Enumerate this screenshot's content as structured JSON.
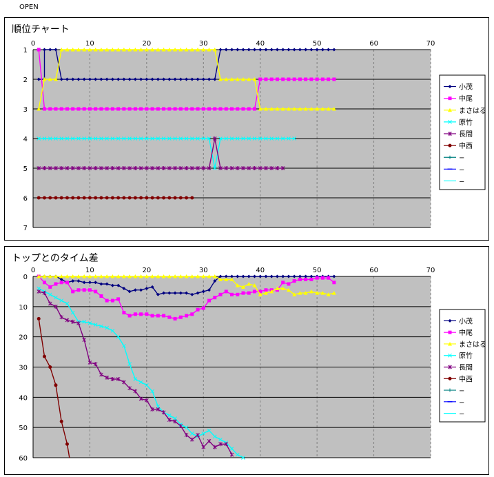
{
  "header": {
    "label": "OPEN"
  },
  "legend_items": [
    {
      "name": "小茂",
      "color": "#000080",
      "marker": "diamond"
    },
    {
      "name": "中尾",
      "color": "#ff00ff",
      "marker": "square"
    },
    {
      "name": "まさはる",
      "color": "#ffff00",
      "marker": "triangle"
    },
    {
      "name": "原竹",
      "color": "#00ffff",
      "marker": "x"
    },
    {
      "name": "長間",
      "color": "#800080",
      "marker": "star"
    },
    {
      "name": "中西",
      "color": "#800000",
      "marker": "circle"
    },
    {
      "name": "−",
      "color": "#008080",
      "marker": "plus"
    },
    {
      "name": "−",
      "color": "#0000ff",
      "marker": "dash"
    },
    {
      "name": "−",
      "color": "#00ffff",
      "marker": "none"
    }
  ],
  "chart_data": [
    {
      "type": "line",
      "title": "順位チャート",
      "xlim": [
        0,
        70
      ],
      "ylim": [
        1,
        7
      ],
      "y_reversed": true,
      "x_ticks": [
        0,
        10,
        20,
        30,
        40,
        50,
        60,
        70
      ],
      "y_ticks": [
        1,
        2,
        3,
        4,
        5,
        6,
        7
      ],
      "plot_background": "#c0c0c0",
      "grid": "horizontal solid, vertical dashed",
      "legend_position": "right",
      "segments": [
        {
          "series": 0,
          "from": 1,
          "to": 2,
          "value": 2
        },
        {
          "series": 0,
          "from": 2,
          "to": 4,
          "value": 1
        },
        {
          "series": 0,
          "from": 5,
          "to": 32,
          "value": 2
        },
        {
          "series": 0,
          "from": 33,
          "to": 53,
          "value": 1
        },
        {
          "series": 1,
          "from": 1,
          "to": 1,
          "value": 1
        },
        {
          "series": 1,
          "from": 2,
          "to": 39,
          "value": 3
        },
        {
          "series": 1,
          "from": 40,
          "to": 53,
          "value": 2
        },
        {
          "series": 2,
          "from": 1,
          "to": 1,
          "value": 3
        },
        {
          "series": 2,
          "from": 2,
          "to": 4,
          "value": 2
        },
        {
          "series": 2,
          "from": 5,
          "to": 32,
          "value": 1
        },
        {
          "series": 2,
          "from": 33,
          "to": 39,
          "value": 2
        },
        {
          "series": 2,
          "from": 40,
          "to": 53,
          "value": 3
        },
        {
          "series": 3,
          "from": 1,
          "to": 31,
          "value": 4
        },
        {
          "series": 3,
          "from": 32,
          "to": 32,
          "value": 5
        },
        {
          "series": 3,
          "from": 33,
          "to": 46,
          "value": 4
        },
        {
          "series": 4,
          "from": 1,
          "to": 31,
          "value": 5
        },
        {
          "series": 4,
          "from": 32,
          "to": 32,
          "value": 4
        },
        {
          "series": 4,
          "from": 33,
          "to": 44,
          "value": 5
        },
        {
          "series": 5,
          "from": 1,
          "to": 28,
          "value": 6
        }
      ]
    },
    {
      "type": "line",
      "title": "トップとのタイム差",
      "xlim": [
        0,
        70
      ],
      "ylim": [
        0,
        60
      ],
      "y_reversed": true,
      "x_ticks": [
        0,
        10,
        20,
        30,
        40,
        50,
        60,
        70
      ],
      "y_ticks": [
        0,
        10,
        20,
        30,
        40,
        50,
        60
      ],
      "plot_background": "#c0c0c0",
      "grid": "horizontal solid, vertical dashed",
      "legend_position": "right",
      "series": [
        {
          "index": 0,
          "points": [
            [
              1,
              0
            ],
            [
              2,
              0
            ],
            [
              3,
              0
            ],
            [
              4,
              0
            ],
            [
              5,
              1
            ],
            [
              6,
              2
            ],
            [
              7,
              1.5
            ],
            [
              8,
              1.5
            ],
            [
              9,
              2
            ],
            [
              10,
              2
            ],
            [
              11,
              2
            ],
            [
              12,
              2.5
            ],
            [
              13,
              2.5
            ],
            [
              14,
              3
            ],
            [
              15,
              3
            ],
            [
              16,
              4
            ],
            [
              17,
              5
            ],
            [
              18,
              4.5
            ],
            [
              19,
              4.5
            ],
            [
              20,
              4
            ],
            [
              21,
              3.5
            ],
            [
              22,
              6
            ],
            [
              23,
              5.5
            ],
            [
              24,
              5.5
            ],
            [
              25,
              5.5
            ],
            [
              26,
              5.5
            ],
            [
              27,
              5.5
            ],
            [
              28,
              6
            ],
            [
              29,
              5.5
            ],
            [
              30,
              5
            ],
            [
              31,
              4.5
            ],
            [
              32,
              1.5
            ],
            [
              33,
              0
            ],
            [
              34,
              0
            ],
            [
              35,
              0
            ],
            [
              36,
              0
            ],
            [
              37,
              0
            ],
            [
              38,
              0
            ],
            [
              39,
              0
            ],
            [
              40,
              0
            ],
            [
              41,
              0
            ],
            [
              42,
              0
            ],
            [
              43,
              0
            ],
            [
              44,
              0
            ],
            [
              45,
              0
            ],
            [
              46,
              0
            ],
            [
              47,
              0
            ],
            [
              48,
              0
            ],
            [
              49,
              0
            ],
            [
              50,
              0
            ],
            [
              51,
              0
            ],
            [
              52,
              0
            ],
            [
              53,
              0
            ]
          ]
        },
        {
          "index": 1,
          "points": [
            [
              1,
              0
            ],
            [
              2,
              2
            ],
            [
              3,
              3.5
            ],
            [
              4,
              2.5
            ],
            [
              5,
              2
            ],
            [
              6,
              2
            ],
            [
              7,
              5
            ],
            [
              8,
              4.5
            ],
            [
              9,
              4.5
            ],
            [
              10,
              4.5
            ],
            [
              11,
              5
            ],
            [
              12,
              6.5
            ],
            [
              13,
              8
            ],
            [
              14,
              8
            ],
            [
              15,
              7.5
            ],
            [
              16,
              12
            ],
            [
              17,
              13
            ],
            [
              18,
              12.5
            ],
            [
              19,
              12.5
            ],
            [
              20,
              12.5
            ],
            [
              21,
              13
            ],
            [
              22,
              13
            ],
            [
              23,
              13
            ],
            [
              24,
              13.5
            ],
            [
              25,
              14
            ],
            [
              26,
              13.5
            ],
            [
              27,
              13
            ],
            [
              28,
              12.5
            ],
            [
              29,
              11
            ],
            [
              30,
              10.5
            ],
            [
              31,
              8
            ],
            [
              32,
              7
            ],
            [
              33,
              6
            ],
            [
              34,
              5
            ],
            [
              35,
              6
            ],
            [
              36,
              6
            ],
            [
              37,
              5.5
            ],
            [
              38,
              5.5
            ],
            [
              39,
              5
            ],
            [
              40,
              5
            ],
            [
              41,
              4.5
            ],
            [
              42,
              4.5
            ],
            [
              43,
              4.5
            ],
            [
              44,
              2
            ],
            [
              45,
              2.5
            ],
            [
              46,
              1.5
            ],
            [
              47,
              1
            ],
            [
              48,
              1
            ],
            [
              49,
              1
            ],
            [
              50,
              0.5
            ],
            [
              51,
              0.5
            ],
            [
              52,
              0.5
            ],
            [
              53,
              2
            ]
          ]
        },
        {
          "index": 2,
          "points": [
            [
              1,
              0
            ],
            [
              2,
              0
            ],
            [
              3,
              0
            ],
            [
              4,
              0
            ],
            [
              5,
              0
            ],
            [
              6,
              0
            ],
            [
              7,
              0
            ],
            [
              8,
              0
            ],
            [
              9,
              0
            ],
            [
              10,
              0
            ],
            [
              11,
              0
            ],
            [
              12,
              0
            ],
            [
              13,
              0
            ],
            [
              14,
              0
            ],
            [
              15,
              0
            ],
            [
              16,
              0
            ],
            [
              17,
              0
            ],
            [
              18,
              0
            ],
            [
              19,
              0
            ],
            [
              20,
              0
            ],
            [
              21,
              0
            ],
            [
              22,
              0
            ],
            [
              23,
              0
            ],
            [
              24,
              0
            ],
            [
              25,
              0
            ],
            [
              26,
              0
            ],
            [
              27,
              0
            ],
            [
              28,
              0
            ],
            [
              29,
              0
            ],
            [
              30,
              0
            ],
            [
              31,
              0
            ],
            [
              32,
              0
            ],
            [
              33,
              1
            ],
            [
              34,
              1
            ],
            [
              35,
              1
            ],
            [
              36,
              3
            ],
            [
              37,
              3.5
            ],
            [
              38,
              2.5
            ],
            [
              39,
              3
            ],
            [
              40,
              6
            ],
            [
              41,
              5.5
            ],
            [
              42,
              5
            ],
            [
              43,
              4
            ],
            [
              44,
              4
            ],
            [
              45,
              4.5
            ],
            [
              46,
              6
            ],
            [
              47,
              5.5
            ],
            [
              48,
              5.5
            ],
            [
              49,
              5
            ],
            [
              50,
              5.5
            ],
            [
              51,
              5.5
            ],
            [
              52,
              6
            ],
            [
              53,
              5.5
            ]
          ]
        },
        {
          "index": 3,
          "points": [
            [
              1,
              4
            ],
            [
              2,
              5
            ],
            [
              3,
              6
            ],
            [
              4,
              7
            ],
            [
              5,
              8
            ],
            [
              6,
              9
            ],
            [
              7,
              12
            ],
            [
              8,
              15
            ],
            [
              9,
              15
            ],
            [
              10,
              15.5
            ],
            [
              11,
              16
            ],
            [
              12,
              16.5
            ],
            [
              13,
              17
            ],
            [
              14,
              18
            ],
            [
              15,
              20
            ],
            [
              16,
              23
            ],
            [
              17,
              29
            ],
            [
              18,
              34
            ],
            [
              19,
              35
            ],
            [
              20,
              36
            ],
            [
              21,
              38
            ],
            [
              22,
              43
            ],
            [
              23,
              45
            ],
            [
              24,
              46
            ],
            [
              25,
              47
            ],
            [
              26,
              49
            ],
            [
              27,
              50
            ],
            [
              28,
              52
            ],
            [
              29,
              53
            ],
            [
              30,
              52
            ],
            [
              31,
              51
            ],
            [
              32,
              53
            ],
            [
              33,
              54
            ],
            [
              34,
              55
            ],
            [
              35,
              57
            ],
            [
              36,
              59
            ],
            [
              37,
              60
            ]
          ]
        },
        {
          "index": 4,
          "points": [
            [
              1,
              5
            ],
            [
              2,
              5.5
            ],
            [
              3,
              9
            ],
            [
              4,
              10
            ],
            [
              5,
              13.5
            ],
            [
              6,
              14.5
            ],
            [
              7,
              15
            ],
            [
              8,
              15.5
            ],
            [
              9,
              21
            ],
            [
              10,
              28.5
            ],
            [
              11,
              29
            ],
            [
              12,
              32.5
            ],
            [
              13,
              33.5
            ],
            [
              14,
              34
            ],
            [
              15,
              34
            ],
            [
              16,
              35
            ],
            [
              17,
              37
            ],
            [
              18,
              38
            ],
            [
              19,
              40.5
            ],
            [
              20,
              41
            ],
            [
              21,
              44
            ],
            [
              22,
              44
            ],
            [
              23,
              45
            ],
            [
              24,
              47.5
            ],
            [
              25,
              48
            ],
            [
              26,
              49.5
            ],
            [
              27,
              52.5
            ],
            [
              28,
              54
            ],
            [
              29,
              52.5
            ],
            [
              30,
              56.5
            ],
            [
              31,
              54.5
            ],
            [
              32,
              56.5
            ],
            [
              33,
              55.5
            ],
            [
              34,
              55.5
            ],
            [
              35,
              59
            ]
          ]
        },
        {
          "index": 5,
          "points": [
            [
              1,
              14
            ],
            [
              2,
              26.5
            ],
            [
              3,
              30
            ],
            [
              4,
              36
            ],
            [
              5,
              48
            ],
            [
              6,
              55.5
            ],
            [
              6.4,
              60
            ]
          ]
        }
      ]
    }
  ]
}
